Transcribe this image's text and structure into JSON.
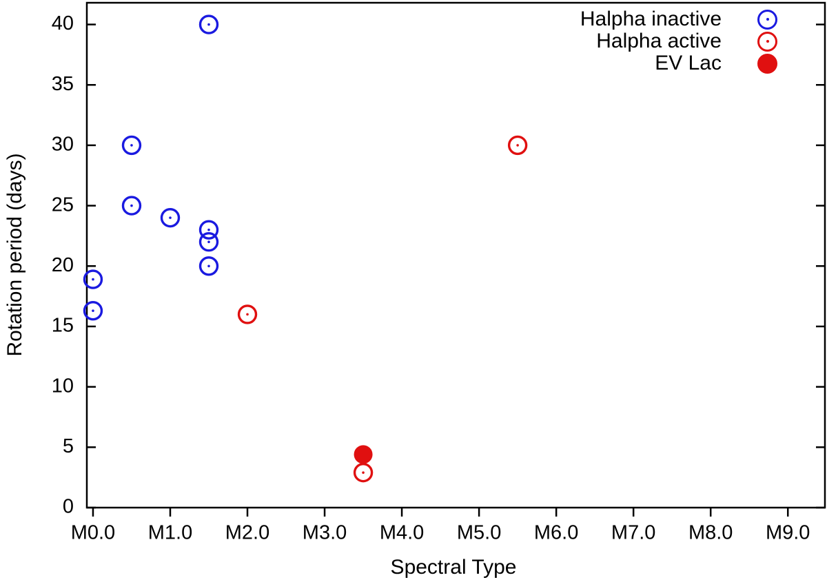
{
  "figure": {
    "background": "#ffffff",
    "axis_color": "#000000",
    "text_color": "#000000"
  },
  "chart_data": {
    "type": "scatter",
    "title": "",
    "xlabel": "Spectral Type",
    "ylabel": "Rotation period (days)",
    "x_tick_labels": [
      "M0.0",
      "M1.0",
      "M2.0",
      "M3.0",
      "M4.0",
      "M5.0",
      "M6.0",
      "M7.0",
      "M8.0",
      "M9.0"
    ],
    "x_tick_values": [
      0,
      1,
      2,
      3,
      4,
      5,
      6,
      7,
      8,
      9
    ],
    "y_tick_labels": [
      "0",
      "5",
      "10",
      "15",
      "20",
      "25",
      "30",
      "35",
      "40"
    ],
    "y_tick_values": [
      0,
      5,
      10,
      15,
      20,
      25,
      30,
      35,
      40
    ],
    "xlim": [
      -0.08,
      9.48
    ],
    "ylim": [
      0,
      41.8
    ],
    "grid": false,
    "legend_position": "top-right-inside",
    "series": [
      {
        "name": "Halpha inactive",
        "marker": "open-circle",
        "color": "#1a1ae0",
        "points": [
          [
            0.0,
            18.9
          ],
          [
            0.0,
            16.3
          ],
          [
            0.5,
            30.0
          ],
          [
            0.5,
            25.0
          ],
          [
            1.0,
            24.0
          ],
          [
            1.5,
            40.0
          ],
          [
            1.5,
            23.0
          ],
          [
            1.5,
            22.0
          ],
          [
            1.5,
            20.0
          ]
        ]
      },
      {
        "name": "Halpha active",
        "marker": "open-circle",
        "color": "#e01010",
        "points": [
          [
            2.0,
            16.0
          ],
          [
            3.5,
            2.9
          ],
          [
            5.5,
            30.0
          ]
        ]
      },
      {
        "name": "EV Lac",
        "marker": "filled-circle",
        "color": "#e01010",
        "points": [
          [
            3.5,
            4.4
          ]
        ]
      }
    ]
  }
}
